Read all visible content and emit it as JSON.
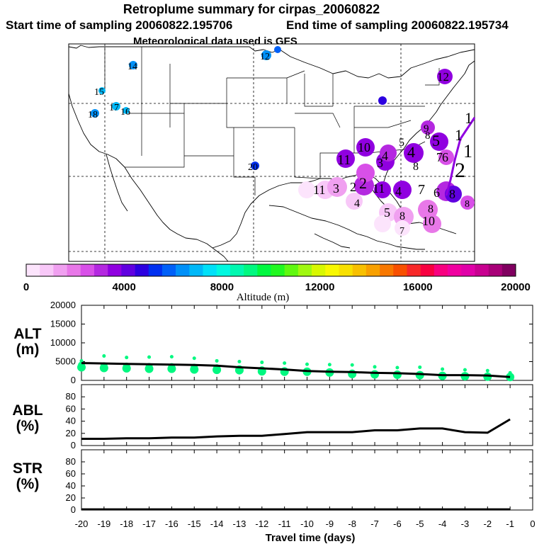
{
  "title": {
    "line1": "Retroplume summary for cirpas_20060822",
    "start_label": "Start time of sampling 20060822.195706",
    "end_label": "End time of sampling 20060822.195734",
    "line3": "Meteorological data used is GFS"
  },
  "colorbar": {
    "colors": [
      "#fce4fc",
      "#f8c8f8",
      "#f0a0f0",
      "#e878e8",
      "#d850e8",
      "#b428e0",
      "#9000e0",
      "#6000e0",
      "#2c00e0",
      "#0030f0",
      "#0060f8",
      "#0090f8",
      "#00b8f8",
      "#00e0f8",
      "#00f8e0",
      "#00f8b0",
      "#00f880",
      "#00f840",
      "#20f820",
      "#60f810",
      "#a0f810",
      "#d8f800",
      "#f8f800",
      "#f8e000",
      "#f8c000",
      "#f8a000",
      "#f87800",
      "#f85000",
      "#f82828",
      "#f80040",
      "#f80080",
      "#f000a0",
      "#e000a8",
      "#c80090",
      "#a80078",
      "#800060"
    ],
    "ticks": [
      "0",
      "4000",
      "8000",
      "12000",
      "16000",
      "20000"
    ],
    "label": "Altitude (m)"
  },
  "map": {
    "station_labels": [
      {
        "t": "12",
        "c": "#0090f8"
      },
      {
        "t": "14",
        "c": "#0090f8"
      },
      {
        "t": "15",
        "c": "#00b8f8"
      },
      {
        "t": "17",
        "c": "#00b8f8"
      },
      {
        "t": "16",
        "c": "#00b8f8"
      },
      {
        "t": "18",
        "c": "#0090f8"
      },
      {
        "t": "20",
        "c": "#2c00e0"
      },
      {
        "t": "11",
        "c": "#d850e8"
      },
      {
        "t": "10",
        "c": "#9000e0"
      },
      {
        "t": "5",
        "c": "#9000e0"
      },
      {
        "t": "4",
        "c": "#b428e0"
      },
      {
        "t": "3",
        "c": "#b428e0"
      },
      {
        "t": "8",
        "c": "#d850e8"
      },
      {
        "t": "7",
        "c": "#9000e0"
      },
      {
        "t": "6",
        "c": "#9000e0"
      },
      {
        "t": "9",
        "c": "#b428e0"
      },
      {
        "t": "2",
        "c": "#b428e0"
      },
      {
        "t": "1",
        "c": "#d850e8"
      }
    ]
  },
  "chart_data": [
    {
      "type": "line",
      "panel": "ALT",
      "ylabel": "ALT (m)",
      "ylim": [
        0,
        20000
      ],
      "yticks": [
        "0",
        "5000",
        "10000",
        "15000",
        "20000"
      ],
      "x": [
        -20,
        -19,
        -18,
        -17,
        -16,
        -15,
        -14,
        -13,
        -12,
        -11,
        -10,
        -9,
        -8,
        -7,
        -6,
        -5,
        -4,
        -3,
        -2,
        -1
      ],
      "series": [
        {
          "name": "median altitude",
          "values": [
            4600,
            4500,
            4400,
            4300,
            4200,
            4100,
            3900,
            3500,
            3200,
            2900,
            2500,
            2300,
            2200,
            2000,
            1900,
            1700,
            1400,
            1400,
            1300,
            900
          ]
        }
      ],
      "scatter_series": [
        {
          "name": "member altitude (upper)",
          "values": [
            5200,
            6500,
            6100,
            6200,
            6300,
            5900,
            5200,
            5000,
            4800,
            4600,
            4300,
            4200,
            4100,
            3600,
            3400,
            3500,
            3000,
            2800,
            2600,
            2000
          ]
        },
        {
          "name": "member altitude (lower)",
          "values": [
            3500,
            3300,
            3200,
            3100,
            3100,
            2900,
            2800,
            2700,
            2400,
            2300,
            2300,
            2100,
            1700,
            1600,
            1500,
            1400,
            1200,
            1100,
            1000,
            900
          ]
        }
      ]
    },
    {
      "type": "line",
      "panel": "ABL",
      "ylabel": "ABL (%)",
      "ylim": [
        0,
        100
      ],
      "yticks": [
        "0",
        "20",
        "40",
        "60",
        "80"
      ],
      "x": [
        -20,
        -19,
        -18,
        -17,
        -16,
        -15,
        -14,
        -13,
        -12,
        -11,
        -10,
        -9,
        -8,
        -7,
        -6,
        -5,
        -4,
        -3,
        -2,
        -1
      ],
      "series": [
        {
          "name": "ABL fraction",
          "values": [
            11,
            11,
            12,
            12,
            13,
            13,
            15,
            16,
            16,
            19,
            22,
            22,
            22,
            25,
            25,
            28,
            28,
            22,
            21,
            43
          ]
        }
      ]
    },
    {
      "type": "line",
      "panel": "STR",
      "ylabel": "STR (%)",
      "ylim": [
        0,
        100
      ],
      "yticks": [
        "0",
        "20",
        "40",
        "60",
        "80"
      ],
      "x": [
        -20,
        -19,
        -18,
        -17,
        -16,
        -15,
        -14,
        -13,
        -12,
        -11,
        -10,
        -9,
        -8,
        -7,
        -6,
        -5,
        -4,
        -3,
        -2,
        -1
      ],
      "series": [
        {
          "name": "STR fraction",
          "values": [
            1,
            1,
            1,
            1,
            1,
            1,
            1,
            1,
            1,
            1,
            1,
            1,
            1,
            1,
            1,
            1,
            1,
            1,
            1,
            1
          ]
        }
      ],
      "xlabel": "Travel time (days)",
      "xticks": [
        "-20",
        "-19",
        "-18",
        "-17",
        "-16",
        "-15",
        "-14",
        "-13",
        "-12",
        "-11",
        "-10",
        "-9",
        "-8",
        "-7",
        "-6",
        "-5",
        "-4",
        "-3",
        "-2",
        "-1",
        "0"
      ]
    }
  ]
}
